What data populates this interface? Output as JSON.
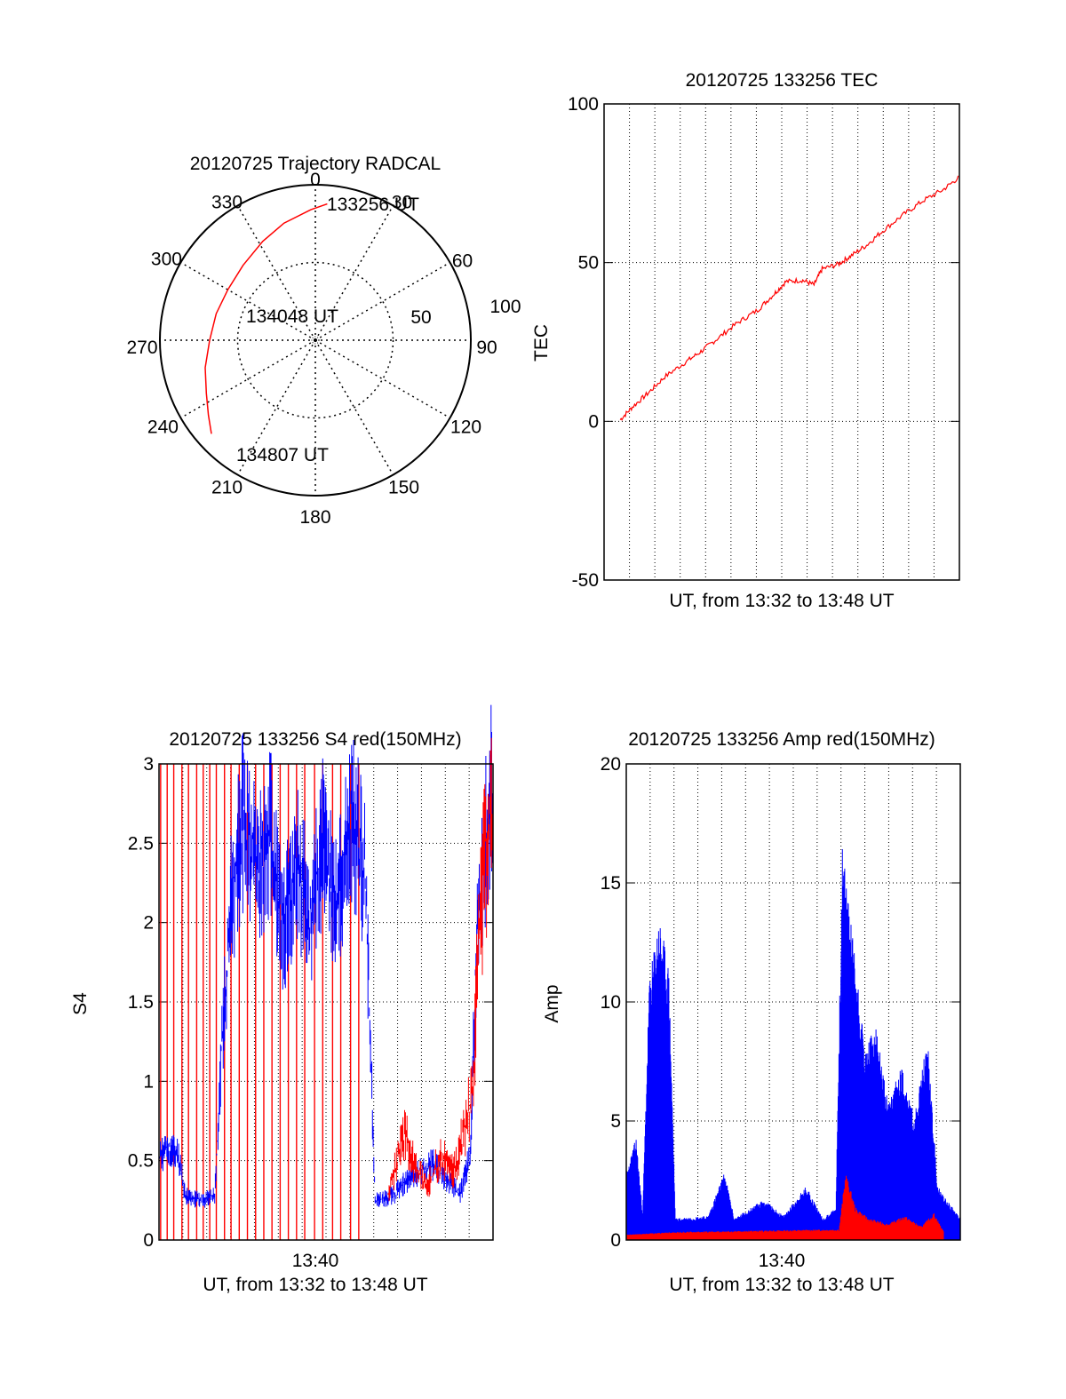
{
  "colors": {
    "red": "#ff0000",
    "blue": "#0000ff",
    "axis": "#000000",
    "grid": "#000000"
  },
  "chart_data": [
    {
      "id": "trajectory",
      "type": "polar",
      "title": "20120725 Trajectory RADCAL",
      "angle_labels": [
        "0",
        "30",
        "60",
        "90",
        "120",
        "150",
        "180",
        "210",
        "240",
        "270",
        "300",
        "330"
      ],
      "radial_labels": [
        "50",
        "100"
      ],
      "rmax": 100,
      "start_label": "133256 UT",
      "mid_label": "134048 UT",
      "end_label": "134807 UT",
      "series": [
        {
          "color": "red",
          "points": [
            {
              "az": 5,
              "zen": 88
            },
            {
              "az": 358,
              "zen": 84
            },
            {
              "az": 345,
              "zen": 78
            },
            {
              "az": 332,
              "zen": 72
            },
            {
              "az": 316,
              "zen": 67
            },
            {
              "az": 300,
              "zen": 65
            },
            {
              "az": 285,
              "zen": 66
            },
            {
              "az": 270,
              "zen": 68
            },
            {
              "az": 256,
              "zen": 73
            },
            {
              "az": 244,
              "zen": 78
            },
            {
              "az": 235,
              "zen": 84
            },
            {
              "az": 228,
              "zen": 90
            }
          ]
        }
      ]
    },
    {
      "id": "tec",
      "type": "line",
      "title": "20120725 133256 TEC",
      "ylabel": "TEC",
      "xlabel": "UT, from 13:32 to 13:48 UT",
      "ylim": [
        -50,
        100
      ],
      "yticks": [
        "-50",
        "0",
        "50",
        "100"
      ],
      "xlim_min": [
        13.2,
        16.3
      ],
      "grid": true,
      "series": [
        {
          "color": "red",
          "points": [
            [
              13.6,
              0.5
            ],
            [
              13.9,
              4.5
            ],
            [
              14.3,
              9
            ],
            [
              14.7,
              14
            ],
            [
              15.2,
              18.5
            ],
            [
              15.6,
              22
            ],
            [
              16.0,
              26
            ],
            [
              16.5,
              31
            ],
            [
              17.0,
              35
            ],
            [
              17.4,
              40
            ],
            [
              17.7,
              44
            ],
            [
              18.1,
              44.5
            ],
            [
              18.4,
              43
            ],
            [
              18.6,
              48
            ],
            [
              19.0,
              49.5
            ],
            [
              19.3,
              52
            ],
            [
              19.7,
              55.5
            ],
            [
              20.1,
              60
            ],
            [
              20.6,
              65
            ],
            [
              21.1,
              69.5
            ],
            [
              21.6,
              73
            ],
            [
              22.0,
              77
            ]
          ]
        }
      ]
    },
    {
      "id": "s4",
      "type": "line",
      "title": "20120725 133256 S4 red(150MHz)",
      "ylabel": "S4",
      "xlabel": "UT, from 13:32 to 13:48 UT",
      "xtick_label": "13:40",
      "ylim": [
        0,
        3
      ],
      "yticks": [
        "0",
        "0.5",
        "1",
        "1.5",
        "2",
        "2.5",
        "3"
      ],
      "grid": true,
      "series": [
        {
          "color": "blue",
          "points": [
            [
              0.0,
              0.55
            ],
            [
              0.3,
              0.6
            ],
            [
              0.6,
              0.55
            ],
            [
              0.8,
              0.3
            ],
            [
              1.3,
              0.25
            ],
            [
              1.7,
              0.3
            ],
            [
              1.9,
              1.2
            ],
            [
              2.2,
              2.2
            ],
            [
              2.6,
              2.8
            ],
            [
              3.0,
              2.4
            ],
            [
              3.4,
              2.7
            ],
            [
              3.8,
              2.0
            ],
            [
              4.2,
              2.5
            ],
            [
              4.6,
              2.1
            ],
            [
              5.0,
              2.6
            ],
            [
              5.4,
              2.2
            ],
            [
              5.9,
              2.8
            ],
            [
              6.3,
              2.4
            ],
            [
              6.6,
              0.25
            ],
            [
              7.2,
              0.3
            ],
            [
              7.6,
              0.4
            ],
            [
              8.0,
              0.45
            ],
            [
              8.4,
              0.5
            ],
            [
              8.8,
              0.4
            ],
            [
              9.2,
              0.3
            ],
            [
              9.5,
              0.55
            ],
            [
              9.7,
              2.0
            ],
            [
              9.9,
              2.5
            ],
            [
              10.2,
              3.0
            ]
          ]
        },
        {
          "color": "red",
          "points": [
            [
              7.0,
              0.3
            ],
            [
              7.5,
              0.7
            ],
            [
              7.8,
              0.5
            ],
            [
              8.2,
              0.35
            ],
            [
              8.6,
              0.55
            ],
            [
              9.0,
              0.45
            ],
            [
              9.3,
              0.7
            ],
            [
              9.6,
              1.0
            ],
            [
              9.8,
              2.2
            ],
            [
              10.2,
              3.0
            ]
          ]
        }
      ],
      "red_spikes_to_top": [
        0.05,
        0.25,
        0.45,
        0.7,
        0.9,
        1.15,
        1.35,
        1.55,
        1.75,
        2.0,
        2.2,
        2.45,
        2.7,
        2.95,
        3.2,
        3.45,
        3.7,
        3.95,
        4.2,
        4.45,
        4.75,
        5.0,
        5.3,
        5.55,
        5.85,
        6.1
      ]
    },
    {
      "id": "amp",
      "type": "line",
      "title": "20120725 133256 Amp red(150MHz)",
      "ylabel": "Amp",
      "xlabel": "UT, from 13:32 to 13:48 UT",
      "xtick_label": "13:40",
      "ylim": [
        0,
        20
      ],
      "yticks": [
        "0",
        "5",
        "10",
        "15",
        "20"
      ],
      "grid": true,
      "series": [
        {
          "color": "blue",
          "points": [
            [
              0.0,
              2.5
            ],
            [
              0.3,
              3.8
            ],
            [
              0.5,
              1.0
            ],
            [
              0.7,
              9.5
            ],
            [
              1.0,
              12.0
            ],
            [
              1.3,
              10.0
            ],
            [
              1.5,
              0.8
            ],
            [
              2.5,
              0.9
            ],
            [
              3.0,
              2.5
            ],
            [
              3.3,
              0.8
            ],
            [
              4.2,
              1.5
            ],
            [
              4.8,
              0.9
            ],
            [
              5.5,
              2.0
            ],
            [
              6.0,
              0.8
            ],
            [
              6.4,
              1.2
            ],
            [
              6.6,
              14.5
            ],
            [
              6.9,
              11.5
            ],
            [
              7.3,
              7.0
            ],
            [
              7.6,
              8.0
            ],
            [
              8.0,
              5.0
            ],
            [
              8.4,
              6.5
            ],
            [
              8.8,
              4.5
            ],
            [
              9.2,
              7.5
            ],
            [
              9.5,
              2.0
            ],
            [
              10.2,
              0.8
            ]
          ]
        },
        {
          "color": "red",
          "points": [
            [
              0.0,
              0.2
            ],
            [
              1.5,
              0.3
            ],
            [
              6.5,
              0.4
            ],
            [
              6.7,
              2.5
            ],
            [
              7.0,
              1.2
            ],
            [
              7.4,
              0.8
            ],
            [
              8.0,
              0.6
            ],
            [
              8.5,
              0.9
            ],
            [
              9.0,
              0.5
            ],
            [
              9.4,
              1.0
            ],
            [
              9.7,
              0.3
            ]
          ]
        }
      ]
    }
  ]
}
